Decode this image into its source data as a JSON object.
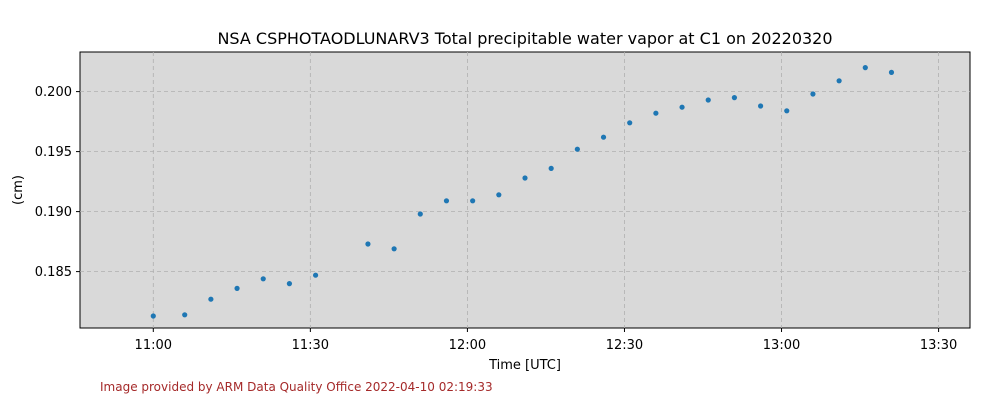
{
  "chart_data": {
    "type": "scatter",
    "title": "NSA CSPHOTAODLUNARV3 Total precipitable water vapor at C1 on 20220320",
    "xlabel": "Time [UTC]",
    "ylabel": "(cm)",
    "x_range": [
      "10:46",
      "13:36"
    ],
    "ylim": [
      0.1803,
      0.2033
    ],
    "x_ticks": [
      "11:00",
      "11:30",
      "12:00",
      "12:30",
      "13:00",
      "13:30"
    ],
    "y_ticks": [
      0.185,
      0.19,
      0.195,
      0.2
    ],
    "y_tick_labels": [
      "0.185",
      "0.190",
      "0.195",
      "0.200"
    ],
    "grid": true,
    "plot_background": "#d9d9d9",
    "marker_color": "#1f77b4",
    "points": [
      {
        "x": "11:00",
        "y": 0.1813
      },
      {
        "x": "11:06",
        "y": 0.1814
      },
      {
        "x": "11:11",
        "y": 0.1827
      },
      {
        "x": "11:16",
        "y": 0.1836
      },
      {
        "x": "11:21",
        "y": 0.1844
      },
      {
        "x": "11:26",
        "y": 0.184
      },
      {
        "x": "11:31",
        "y": 0.1847
      },
      {
        "x": "11:41",
        "y": 0.1873
      },
      {
        "x": "11:46",
        "y": 0.1869
      },
      {
        "x": "11:51",
        "y": 0.1898
      },
      {
        "x": "11:56",
        "y": 0.1909
      },
      {
        "x": "12:01",
        "y": 0.1909
      },
      {
        "x": "12:06",
        "y": 0.1914
      },
      {
        "x": "12:11",
        "y": 0.1928
      },
      {
        "x": "12:16",
        "y": 0.1936
      },
      {
        "x": "12:21",
        "y": 0.1952
      },
      {
        "x": "12:26",
        "y": 0.1962
      },
      {
        "x": "12:31",
        "y": 0.1974
      },
      {
        "x": "12:36",
        "y": 0.1982
      },
      {
        "x": "12:41",
        "y": 0.1987
      },
      {
        "x": "12:46",
        "y": 0.1993
      },
      {
        "x": "12:51",
        "y": 0.1995
      },
      {
        "x": "12:56",
        "y": 0.1988
      },
      {
        "x": "13:01",
        "y": 0.1984
      },
      {
        "x": "13:06",
        "y": 0.1998
      },
      {
        "x": "13:11",
        "y": 0.2009
      },
      {
        "x": "13:16",
        "y": 0.202
      },
      {
        "x": "13:21",
        "y": 0.2016
      }
    ]
  },
  "footer": "Image provided by ARM Data Quality Office 2022-04-10 02:19:33"
}
